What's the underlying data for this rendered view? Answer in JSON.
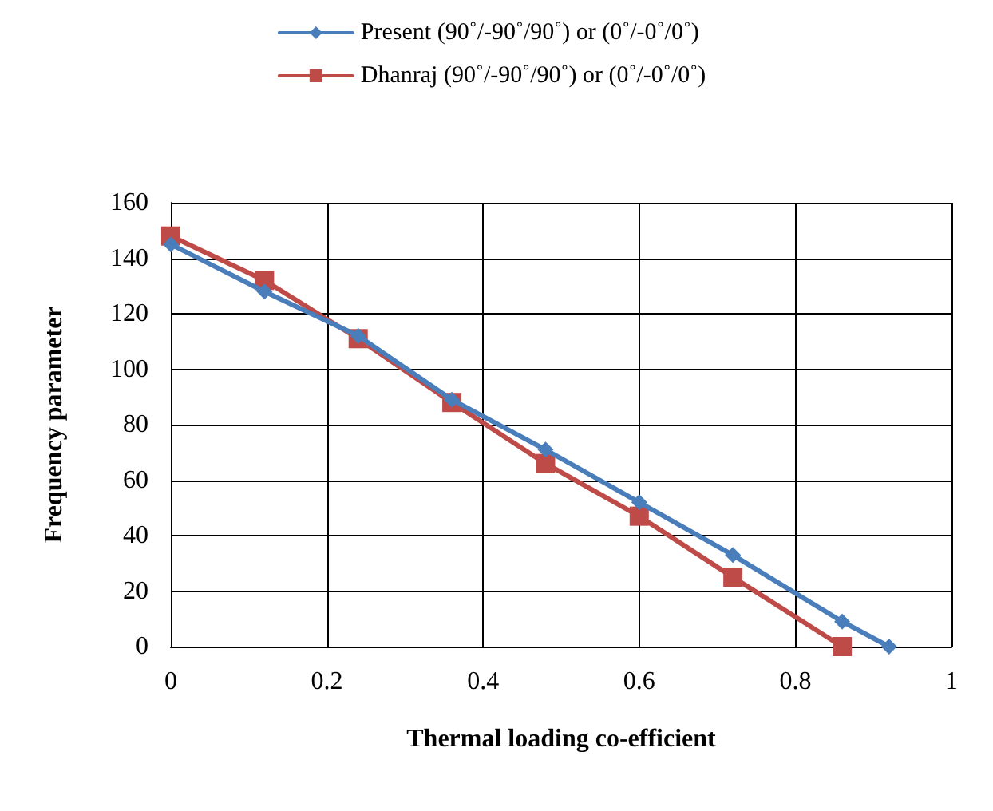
{
  "chart_data": {
    "type": "line",
    "xlabel": "Thermal loading co-efficient",
    "ylabel": "Frequency parameter",
    "series": [
      {
        "name": "Present (90˚/-90˚/90˚) or (0˚/-0˚/0˚)",
        "color": "#4a7ebb",
        "marker": "diamond",
        "x": [
          0,
          0.12,
          0.24,
          0.36,
          0.48,
          0.6,
          0.72,
          0.86,
          0.92
        ],
        "values": [
          145,
          128,
          112,
          89,
          71,
          52,
          33,
          9,
          0
        ]
      },
      {
        "name": "Dhanraj (90˚/-90˚/90˚) or (0˚/-0˚/0˚)",
        "color": "#be4b48",
        "marker": "square",
        "x": [
          0,
          0.12,
          0.24,
          0.36,
          0.48,
          0.6,
          0.72,
          0.86
        ],
        "values": [
          148,
          132,
          111,
          88,
          66,
          47,
          25,
          0
        ]
      }
    ],
    "xlim": [
      0,
      1
    ],
    "xticks": [
      0,
      0.2,
      0.4,
      0.6,
      0.8,
      1
    ],
    "ylim": [
      0,
      160
    ],
    "yticks": [
      0,
      20,
      40,
      60,
      80,
      100,
      120,
      140,
      160
    ],
    "grid": true,
    "legend": "top",
    "line_style": "solid"
  }
}
